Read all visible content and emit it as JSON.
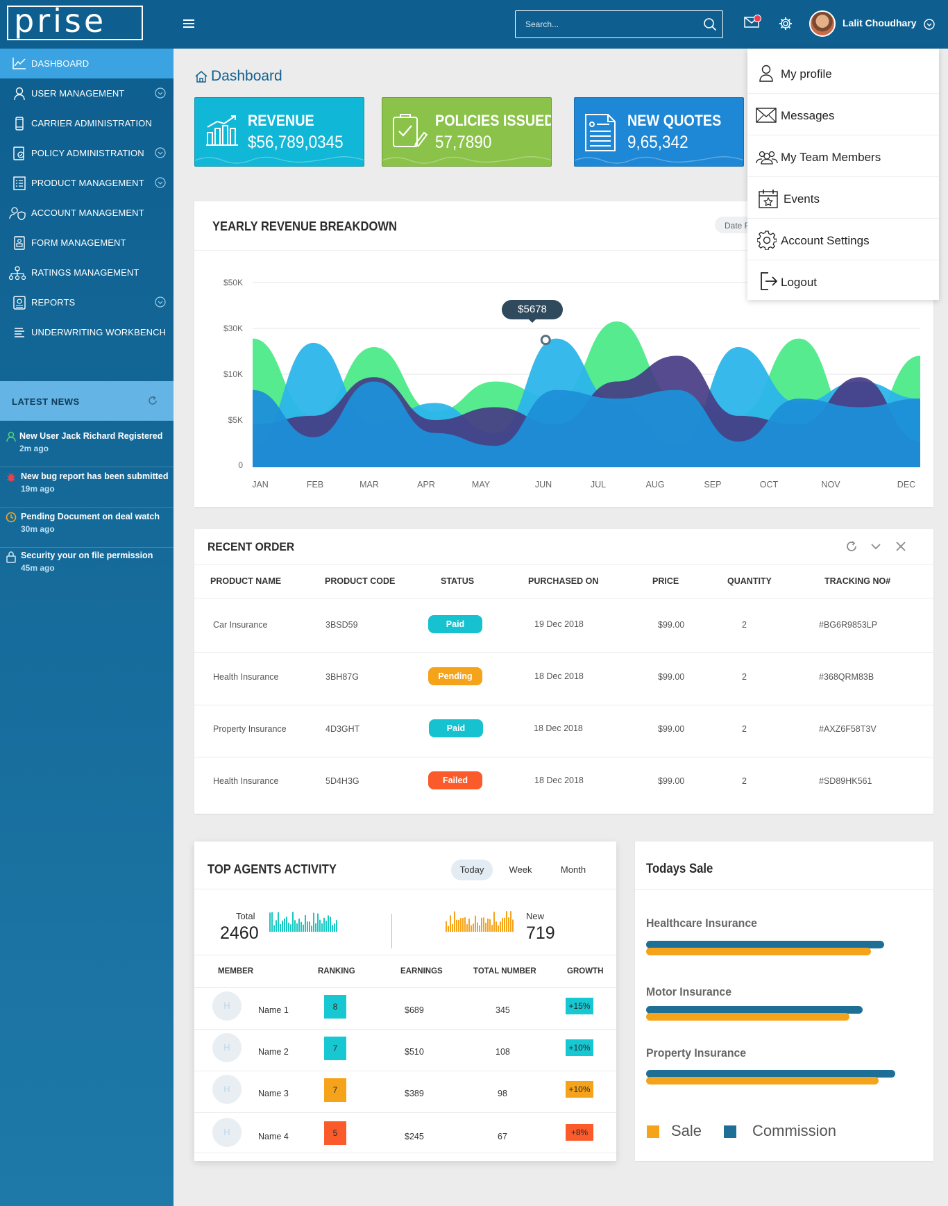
{
  "app": {
    "logo": "prise"
  },
  "header": {
    "search_placeholder": "Search...",
    "user_name": "Lalit Choudhary"
  },
  "sidebar": {
    "items": [
      {
        "label": "DASHBOARD",
        "icon": "line-chart-icon",
        "active": true,
        "chevron": false
      },
      {
        "label": "USER MANAGEMENT",
        "icon": "user-icon",
        "chevron": true
      },
      {
        "label": "CARRIER ADMINISTRATION",
        "icon": "phone-icon",
        "chevron": false
      },
      {
        "label": "POLICY ADMINISTRATION",
        "icon": "policy-icon",
        "chevron": true
      },
      {
        "label": "PRODUCT MANAGEMENT",
        "icon": "list-icon",
        "chevron": true
      },
      {
        "label": "ACCOUNT MANAGEMENT",
        "icon": "account-icon",
        "chevron": false
      },
      {
        "label": "FORM MANAGEMENT",
        "icon": "form-icon",
        "chevron": false
      },
      {
        "label": "RATINGS MANAGEMENT",
        "icon": "hierarchy-icon",
        "chevron": false
      },
      {
        "label": "REPORTS",
        "icon": "report-icon",
        "chevron": true
      },
      {
        "label": "UNDERWRITING WORKBENCH",
        "icon": "lines-icon",
        "chevron": false
      }
    ]
  },
  "news": {
    "title": "LATEST NEWS",
    "items": [
      {
        "text": "New User Jack Richard Registered",
        "time": "2m ago",
        "icon": "user-icon",
        "color": "#5ad17a"
      },
      {
        "text": "New bug report has been submitted",
        "time": "19m ago",
        "icon": "bug-icon",
        "color": "#e2454e"
      },
      {
        "text": "Pending Document on deal watch",
        "time": "30m ago",
        "icon": "clock-icon",
        "color": "#f5a623"
      },
      {
        "text": "Security your on file permission",
        "time": "45m ago",
        "icon": "lock-icon",
        "color": "#cfe6f3"
      }
    ]
  },
  "breadcrumb": "Dashboard",
  "stats": [
    {
      "title": "REVENUE",
      "value": "$56,789,0345",
      "color": "#11b7d6",
      "icon": "bar-chart-icon"
    },
    {
      "title": "POLICIES ISSUED",
      "value": "57,7890",
      "color": "#8bc34a",
      "icon": "certificate-icon"
    },
    {
      "title": "NEW QUOTES",
      "value": "9,65,342",
      "color": "#1e88d6",
      "icon": "document-icon"
    }
  ],
  "revenue_chart": {
    "title": "YEARLY REVENUE BREAKDOWN",
    "date_button": "Date F",
    "tooltip": "$5678"
  },
  "chart_data": {
    "type": "area",
    "title": "YEARLY REVENUE BREAKDOWN",
    "categories": [
      "JAN",
      "FEB",
      "MAR",
      "APR",
      "MAY",
      "JUN",
      "JUL",
      "AUG",
      "SEP",
      "OCT",
      "NOV",
      "DEC"
    ],
    "y_ticks": [
      "$50K",
      "$30K",
      "$10K",
      "$5K",
      "0"
    ],
    "highlight": {
      "category": "JUN",
      "label": "$5678"
    },
    "colors": [
      "#4cea88",
      "#2cb5ea",
      "#463c84",
      "#1e8fd8"
    ],
    "series": [
      {
        "values": [
          30,
          12,
          28,
          13,
          20,
          16,
          34,
          16,
          12,
          30,
          8,
          26
        ]
      },
      {
        "values": [
          5,
          29,
          10,
          15,
          8,
          30,
          15,
          5,
          28,
          15,
          20,
          16
        ]
      },
      {
        "values": [
          10,
          12,
          21,
          11,
          14,
          10,
          20,
          26,
          12,
          10,
          21,
          6
        ]
      },
      {
        "values": [
          18,
          7,
          20,
          8,
          5,
          18,
          16,
          18,
          6,
          16,
          14,
          16
        ]
      }
    ]
  },
  "orders": {
    "title": "RECENT ORDER",
    "columns": [
      "PRODUCT NAME",
      "PRODUCT  CODE",
      "STATUS",
      "PURCHASED ON",
      "PRICE",
      "QUANTITY",
      "TRACKING NO#"
    ],
    "rows": [
      {
        "name": "Car Insurance",
        "code": "3BSD59",
        "status": "Paid",
        "status_color": "#16c2d0",
        "date": "19 Dec 2018",
        "price": "$99.00",
        "qty": "2",
        "tracking": "#BG6R9853LP"
      },
      {
        "name": "Health Insurance",
        "code": "3BH87G",
        "status": "Pending",
        "status_color": "#f5a31a",
        "date": "18 Dec 2018",
        "price": "$99.00",
        "qty": "2",
        "tracking": "#368QRM83B"
      },
      {
        "name": "Property Insurance",
        "code": "4D3GHT",
        "status": "Paid",
        "status_color": "#16c2d0",
        "date": "18 Dec 2018",
        "price": "$99.00",
        "qty": "2",
        "tracking": "#AXZ6F58T3V"
      },
      {
        "name": "Health Insurance",
        "code": "5D4H3G",
        "status": "Failed",
        "status_color": "#fb5a2a",
        "date": "18 Dec 2018",
        "price": "$99.00",
        "qty": "2",
        "tracking": "#SD89HK561"
      }
    ]
  },
  "agents": {
    "title": "TOP AGENTS ACTIVITY",
    "tabs": [
      "Today",
      "Week",
      "Month"
    ],
    "total_label": "Total",
    "total_value": "2460",
    "new_label": "New",
    "new_value": "719",
    "columns": [
      "MEMBER",
      "RANKING",
      "EARNINGS",
      "TOTAL NUMBER",
      "GROWTH"
    ],
    "rows": [
      {
        "initial": "H",
        "name": "Name 1",
        "rank": "8",
        "rank_color": "#17c7d2",
        "earnings": "$689",
        "total": "345",
        "growth": "+15%",
        "growth_color": "#17c7d2"
      },
      {
        "initial": "H",
        "name": "Name 2",
        "rank": "7",
        "rank_color": "#17c7d2",
        "earnings": "$510",
        "total": "108",
        "growth": "+10%",
        "growth_color": "#17c7d2"
      },
      {
        "initial": "H",
        "name": "Name 3",
        "rank": "7",
        "rank_color": "#f5a31a",
        "earnings": "$389",
        "total": "98",
        "growth": "+10%",
        "growth_color": "#f5a31a"
      },
      {
        "initial": "H",
        "name": "Name 4",
        "rank": "5",
        "rank_color": "#fb5a2a",
        "earnings": "$245",
        "total": "67",
        "growth": "+8%",
        "growth_color": "#fb5a2a"
      }
    ]
  },
  "todays_sale": {
    "title": "Todays Sale",
    "items": [
      {
        "label": "Healthcare Insurance",
        "sale": 0.83,
        "commission": 0.88
      },
      {
        "label": "Motor Insurance",
        "sale": 0.75,
        "commission": 0.8
      },
      {
        "label": "Property Insurance",
        "sale": 0.86,
        "commission": 0.92
      }
    ],
    "legend": {
      "sale": "Sale",
      "commission": "Commission",
      "sale_color": "#f5a31a",
      "commission_color": "#1e6f96"
    }
  },
  "profile_menu": [
    {
      "label": "My profile",
      "icon": "user-icon"
    },
    {
      "label": "Messages",
      "icon": "mail-icon"
    },
    {
      "label": "My Team Members",
      "icon": "team-icon"
    },
    {
      "label": "Events",
      "icon": "calendar-icon"
    },
    {
      "label": "Account Settings",
      "icon": "gear-icon"
    },
    {
      "label": "Logout",
      "icon": "logout-icon"
    }
  ]
}
